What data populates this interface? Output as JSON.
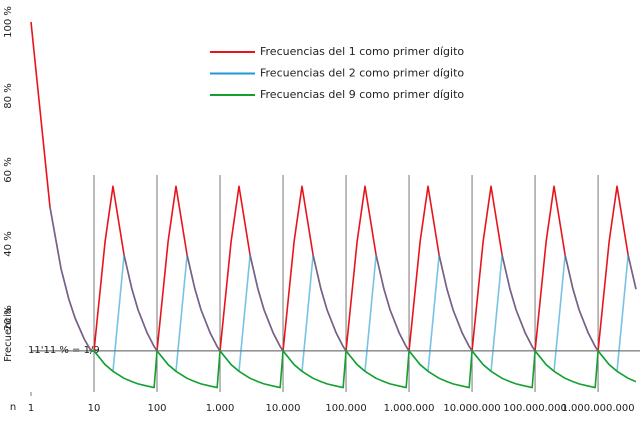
{
  "chart_data": {
    "type": "line",
    "x_label": "n",
    "y_label": "Frecuencia",
    "log_x": true,
    "xlim": [
      1,
      4000000000
    ],
    "ylim": [
      0,
      100
    ],
    "xticks": [
      1,
      10,
      100,
      {
        "value": 1000,
        "label": "1.000"
      },
      {
        "value": 10000,
        "label": "10.000"
      },
      {
        "value": 100000,
        "label": "100.000"
      },
      {
        "value": 1000000,
        "label": "1.000.000"
      },
      {
        "value": 10000000,
        "label": "10.000.000"
      },
      {
        "value": 100000000,
        "label": "100.000.000"
      },
      {
        "value": 1000000000,
        "label": "1.000.000.000"
      }
    ],
    "yticks": [
      {
        "value": 20,
        "label": "20 %"
      },
      {
        "value": 40,
        "label": "40 %"
      },
      {
        "value": 60,
        "label": "60 %"
      },
      {
        "value": 80,
        "label": "80 %"
      },
      {
        "value": 100,
        "label": "100 %"
      }
    ],
    "reference_line": {
      "value": 11.11,
      "label": "11'11 % = 1/9"
    },
    "legend": "top",
    "x": [
      1,
      2,
      3,
      4,
      5,
      7,
      9,
      10,
      15,
      20,
      30,
      40,
      50,
      70,
      90,
      100,
      150,
      200,
      300,
      400,
      500,
      700,
      900,
      1000,
      1500,
      2000,
      3000,
      4000,
      5000,
      7000,
      9000,
      10000,
      15000,
      20000,
      30000,
      40000,
      50000,
      70000,
      90000,
      100000,
      150000,
      200000,
      300000,
      400000,
      500000,
      700000,
      900000,
      1000000,
      1500000,
      2000000,
      3000000,
      4000000,
      5000000,
      7000000,
      9000000,
      10000000,
      15000000,
      20000000,
      30000000,
      40000000,
      50000000,
      70000000,
      90000000,
      100000000,
      150000000,
      200000000,
      300000000,
      400000000,
      500000000,
      700000000,
      900000000,
      1000000000,
      1500000000,
      2000000000,
      3000000000,
      4000000000
    ],
    "series": [
      {
        "name": "Frecuencias del 1 como primer dígito",
        "color": "#e8141c",
        "values": [
          100,
          50,
          33.3,
          25,
          20,
          14.3,
          11.1,
          11.1,
          40.7,
          55.6,
          37.0,
          27.8,
          22.2,
          15.9,
          12.3,
          11.1,
          40.7,
          55.6,
          37.0,
          27.8,
          22.2,
          15.9,
          12.3,
          11.1,
          40.7,
          55.6,
          37.0,
          27.8,
          22.2,
          15.9,
          12.3,
          11.1,
          40.7,
          55.6,
          37.0,
          27.8,
          22.2,
          15.9,
          12.3,
          11.1,
          40.7,
          55.6,
          37.0,
          27.8,
          22.2,
          15.9,
          12.3,
          11.1,
          40.7,
          55.6,
          37.0,
          27.8,
          22.2,
          15.9,
          12.3,
          11.1,
          40.7,
          55.6,
          37.0,
          27.8,
          22.2,
          15.9,
          12.3,
          11.1,
          40.7,
          55.6,
          37.0,
          27.8,
          22.2,
          15.9,
          12.3,
          11.1,
          40.7,
          55.6,
          37.0,
          27.8
        ]
      },
      {
        "name": "Frecuencias del 2 como primer dígito",
        "color": "#1e9ad6",
        "values": [
          null,
          50,
          33.3,
          25,
          20,
          14.3,
          11.1,
          11.1,
          7.4,
          5.6,
          37.0,
          27.8,
          22.2,
          15.9,
          12.3,
          11.1,
          7.4,
          5.6,
          37.0,
          27.8,
          22.2,
          15.9,
          12.3,
          11.1,
          7.4,
          5.6,
          37.0,
          27.8,
          22.2,
          15.9,
          12.3,
          11.1,
          7.4,
          5.6,
          37.0,
          27.8,
          22.2,
          15.9,
          12.3,
          11.1,
          7.4,
          5.6,
          37.0,
          27.8,
          22.2,
          15.9,
          12.3,
          11.1,
          7.4,
          5.6,
          37.0,
          27.8,
          22.2,
          15.9,
          12.3,
          11.1,
          7.4,
          5.6,
          37.0,
          27.8,
          22.2,
          15.9,
          12.3,
          11.1,
          7.4,
          5.6,
          37.0,
          27.8,
          22.2,
          15.9,
          12.3,
          11.1,
          7.4,
          5.6,
          37.0,
          27.8
        ]
      },
      {
        "name": "Frecuencias del 9 como primer dígito",
        "color": "#12a12e",
        "values": [
          null,
          null,
          null,
          null,
          null,
          null,
          11.1,
          11.1,
          7.4,
          5.6,
          3.7,
          2.8,
          2.2,
          1.6,
          1.2,
          11.1,
          7.4,
          5.6,
          3.7,
          2.8,
          2.2,
          1.6,
          1.2,
          11.1,
          7.4,
          5.6,
          3.7,
          2.8,
          2.2,
          1.6,
          1.2,
          11.1,
          7.4,
          5.6,
          3.7,
          2.8,
          2.2,
          1.6,
          1.2,
          11.1,
          7.4,
          5.6,
          3.7,
          2.8,
          2.2,
          1.6,
          1.2,
          11.1,
          7.4,
          5.6,
          3.7,
          2.8,
          2.2,
          1.6,
          1.2,
          11.1,
          7.4,
          5.6,
          3.7,
          2.8,
          2.2,
          1.6,
          1.2,
          11.1,
          7.4,
          5.6,
          3.7,
          2.8,
          2.2,
          1.6,
          1.2,
          11.1,
          7.4,
          5.6,
          3.7,
          2.8
        ]
      }
    ]
  }
}
